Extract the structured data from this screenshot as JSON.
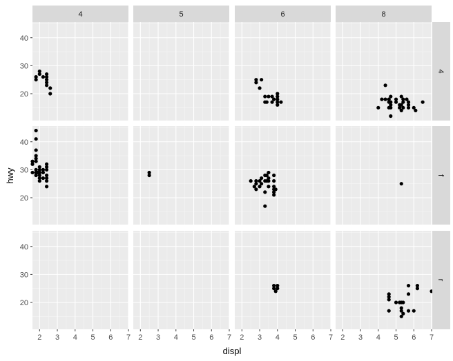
{
  "chart_data": {
    "type": "scatter",
    "facet_grid": true,
    "xlabel": "displ",
    "ylabel": "hwy",
    "xlim": [
      1.6,
      7.0
    ],
    "ylim": [
      10.4,
      45.6
    ],
    "x_ticks": [
      2,
      3,
      4,
      5,
      6,
      7
    ],
    "y_ticks": [
      20,
      30,
      40
    ],
    "col_facet_labels": [
      "4",
      "5",
      "6",
      "8"
    ],
    "row_facet_labels": [
      "4",
      "f",
      "r"
    ],
    "grid": true,
    "panels": [
      {
        "row": "4",
        "col": "4",
        "points": [
          [
            1.8,
            26
          ],
          [
            1.8,
            25
          ],
          [
            2.0,
            28
          ],
          [
            2.0,
            27
          ],
          [
            2.2,
            26
          ],
          [
            2.4,
            26
          ],
          [
            2.4,
            25
          ],
          [
            2.4,
            24
          ],
          [
            2.4,
            27
          ],
          [
            2.4,
            23
          ],
          [
            2.6,
            22
          ],
          [
            2.6,
            20
          ]
        ]
      },
      {
        "row": "4",
        "col": "5",
        "points": []
      },
      {
        "row": "4",
        "col": "6",
        "points": [
          [
            2.8,
            25
          ],
          [
            2.8,
            24
          ],
          [
            3.1,
            25
          ],
          [
            3.0,
            22
          ],
          [
            3.3,
            19
          ],
          [
            3.3,
            17
          ],
          [
            3.4,
            17
          ],
          [
            3.7,
            19
          ],
          [
            3.7,
            17
          ],
          [
            3.8,
            18
          ],
          [
            4.0,
            20
          ],
          [
            4.0,
            19
          ],
          [
            4.0,
            18
          ],
          [
            4.0,
            17
          ],
          [
            4.0,
            16
          ],
          [
            4.2,
            17
          ],
          [
            3.5,
            19
          ]
        ]
      },
      {
        "row": "4",
        "col": "8",
        "points": [
          [
            4.0,
            15
          ],
          [
            4.2,
            18
          ],
          [
            4.4,
            23
          ],
          [
            4.4,
            18
          ],
          [
            4.6,
            18
          ],
          [
            4.6,
            17
          ],
          [
            4.6,
            15
          ],
          [
            4.7,
            19
          ],
          [
            4.7,
            16
          ],
          [
            4.7,
            15
          ],
          [
            4.7,
            12
          ],
          [
            4.7,
            17
          ],
          [
            5.0,
            18
          ],
          [
            5.0,
            17
          ],
          [
            5.2,
            16
          ],
          [
            5.2,
            15
          ],
          [
            5.3,
            14
          ],
          [
            5.3,
            19
          ],
          [
            5.3,
            16
          ],
          [
            5.4,
            17
          ],
          [
            5.4,
            18
          ],
          [
            5.4,
            15
          ],
          [
            5.6,
            18
          ],
          [
            5.7,
            17
          ],
          [
            5.7,
            16
          ],
          [
            5.7,
            15
          ],
          [
            6.0,
            15
          ],
          [
            6.1,
            14
          ],
          [
            6.5,
            17
          ]
        ]
      },
      {
        "row": "f",
        "col": "4",
        "points": [
          [
            1.6,
            33
          ],
          [
            1.6,
            32
          ],
          [
            1.6,
            29
          ],
          [
            1.8,
            35
          ],
          [
            1.8,
            37
          ],
          [
            1.8,
            44
          ],
          [
            1.8,
            41
          ],
          [
            1.8,
            34
          ],
          [
            1.8,
            33
          ],
          [
            1.8,
            30
          ],
          [
            1.8,
            29
          ],
          [
            1.8,
            28
          ],
          [
            1.9,
            29
          ],
          [
            2.0,
            31
          ],
          [
            2.0,
            29
          ],
          [
            2.0,
            27
          ],
          [
            2.0,
            26
          ],
          [
            2.2,
            27
          ],
          [
            2.2,
            30
          ],
          [
            2.2,
            29
          ],
          [
            2.4,
            32
          ],
          [
            2.4,
            31
          ],
          [
            2.4,
            30
          ],
          [
            2.4,
            28
          ],
          [
            2.4,
            27
          ],
          [
            2.4,
            26
          ],
          [
            2.4,
            24
          ],
          [
            2.0,
            28
          ],
          [
            2.0,
            30
          ]
        ]
      },
      {
        "row": "f",
        "col": "5",
        "points": [
          [
            2.5,
            29
          ],
          [
            2.5,
            28
          ]
        ]
      },
      {
        "row": "f",
        "col": "6",
        "points": [
          [
            2.5,
            26
          ],
          [
            2.7,
            24
          ],
          [
            2.8,
            23
          ],
          [
            2.8,
            25
          ],
          [
            2.8,
            26
          ],
          [
            3.0,
            24
          ],
          [
            3.0,
            26
          ],
          [
            3.1,
            27
          ],
          [
            3.1,
            25
          ],
          [
            3.3,
            28
          ],
          [
            3.3,
            26
          ],
          [
            3.3,
            22
          ],
          [
            3.3,
            17
          ],
          [
            3.4,
            28
          ],
          [
            3.4,
            26
          ],
          [
            3.5,
            29
          ],
          [
            3.5,
            27
          ],
          [
            3.5,
            26
          ],
          [
            3.5,
            24
          ],
          [
            3.8,
            28
          ],
          [
            3.8,
            26
          ],
          [
            3.8,
            24
          ],
          [
            3.8,
            23
          ],
          [
            3.8,
            22
          ],
          [
            3.8,
            21
          ],
          [
            3.9,
            23
          ]
        ]
      },
      {
        "row": "f",
        "col": "8",
        "points": [
          [
            5.3,
            25
          ]
        ]
      },
      {
        "row": "r",
        "col": "4",
        "points": []
      },
      {
        "row": "r",
        "col": "5",
        "points": []
      },
      {
        "row": "r",
        "col": "6",
        "points": [
          [
            3.8,
            26
          ],
          [
            3.8,
            25
          ],
          [
            3.9,
            24
          ],
          [
            4.0,
            26
          ],
          [
            4.0,
            25
          ]
        ]
      },
      {
        "row": "r",
        "col": "8",
        "points": [
          [
            4.6,
            23
          ],
          [
            4.6,
            22
          ],
          [
            4.6,
            21
          ],
          [
            4.6,
            17
          ],
          [
            5.0,
            20
          ],
          [
            5.2,
            20
          ],
          [
            5.3,
            20
          ],
          [
            5.3,
            18
          ],
          [
            5.3,
            17
          ],
          [
            5.3,
            15
          ],
          [
            5.4,
            20
          ],
          [
            5.4,
            16
          ],
          [
            5.7,
            26
          ],
          [
            5.7,
            23
          ],
          [
            5.7,
            17
          ],
          [
            6.0,
            17
          ],
          [
            6.2,
            26
          ],
          [
            6.2,
            25
          ],
          [
            7.0,
            24
          ]
        ]
      }
    ]
  }
}
